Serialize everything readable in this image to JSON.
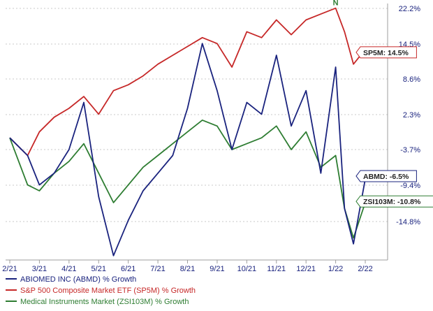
{
  "chart_data": {
    "type": "line",
    "x_ticks": [
      "2/21",
      "3/21",
      "4/21",
      "5/21",
      "6/21",
      "7/21",
      "8/21",
      "9/21",
      "10/21",
      "11/21",
      "12/21",
      "1/22",
      "2/22"
    ],
    "y_ticks": [
      "22.2%",
      "14.5%",
      "8.6%",
      "2.3%",
      "-3.7%",
      "-9.4%",
      "-14.8%"
    ],
    "ylim": [
      -20.5,
      22.2
    ],
    "grid": "horizontal dotted",
    "legend_position": "bottom-left",
    "x": [
      0,
      0.6,
      1,
      1.5,
      2,
      2.5,
      3,
      3.5,
      4,
      4.5,
      5,
      5.5,
      6,
      6.5,
      7,
      7.5,
      8,
      8.5,
      9,
      9.5,
      10,
      10.5,
      11,
      11.3,
      11.6,
      12,
      12.4
    ],
    "series": [
      {
        "name": "ABIOMED INC (ABMD) % Growth",
        "tag": "ABMD: -6.5%",
        "color": "#1a237e",
        "values": [
          0,
          -3,
          -8,
          -6,
          -2,
          6,
          -10,
          -20,
          -14,
          -9,
          -6,
          -3,
          5,
          16,
          8,
          -2,
          6,
          4,
          14,
          2,
          8,
          -6,
          12,
          -12,
          -18,
          -7,
          -6.5
        ]
      },
      {
        "name": "S&P 500 Composite Market ETF (SP5M) % Growth",
        "tag": "SP5M: 14.5%",
        "color": "#c62828",
        "values": [
          0,
          -3,
          1,
          3.5,
          5,
          7,
          4,
          8,
          9,
          10.5,
          12.5,
          14,
          15.5,
          17,
          16,
          12,
          18,
          17,
          20,
          17.5,
          20,
          21,
          22,
          18,
          12.5,
          15,
          14.5
        ]
      },
      {
        "name": "Medical Instruments Market (ZSI103M) % Growth",
        "tag": "ZSI103M: -10.8%",
        "color": "#2e7d32",
        "values": [
          0,
          -8,
          -9,
          -6,
          -4,
          -1,
          -6,
          -11,
          -8,
          -5,
          -3,
          -1,
          1,
          3,
          2,
          -2,
          -1,
          0,
          2,
          -2,
          1,
          -5,
          -3,
          -12,
          -17,
          -11,
          -10.8
        ]
      }
    ],
    "annotations": [
      {
        "text": "N",
        "series": 1,
        "point": 22,
        "color": "#2e7d32"
      }
    ]
  }
}
